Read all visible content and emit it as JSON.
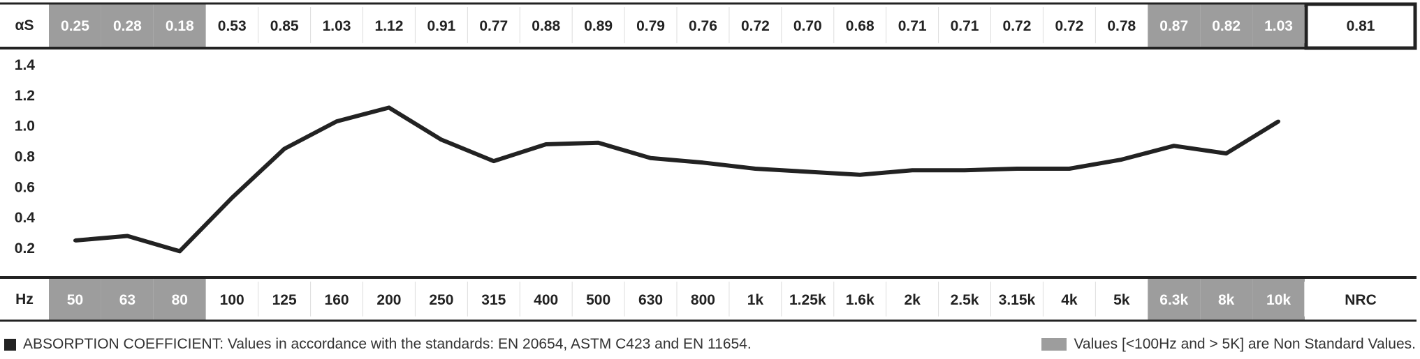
{
  "chart_data": {
    "type": "line",
    "row_label_top": "αS",
    "row_label_bottom": "Hz",
    "categories": [
      "50",
      "63",
      "80",
      "100",
      "125",
      "160",
      "200",
      "250",
      "315",
      "400",
      "500",
      "630",
      "800",
      "1k",
      "1.25k",
      "1.6k",
      "2k",
      "2.5k",
      "3.15k",
      "4k",
      "5k",
      "6.3k",
      "8k",
      "10k"
    ],
    "values": [
      0.25,
      0.28,
      0.18,
      0.53,
      0.85,
      1.03,
      1.12,
      0.91,
      0.77,
      0.88,
      0.89,
      0.79,
      0.76,
      0.72,
      0.7,
      0.68,
      0.71,
      0.71,
      0.72,
      0.72,
      0.78,
      0.87,
      0.82,
      1.03
    ],
    "value_labels": [
      "0.25",
      "0.28",
      "0.18",
      "0.53",
      "0.85",
      "1.03",
      "1.12",
      "0.91",
      "0.77",
      "0.88",
      "0.89",
      "0.79",
      "0.76",
      "0.72",
      "0.70",
      "0.68",
      "0.71",
      "0.71",
      "0.72",
      "0.72",
      "0.78",
      "0.87",
      "0.82",
      "1.03"
    ],
    "non_standard": [
      true,
      true,
      true,
      false,
      false,
      false,
      false,
      false,
      false,
      false,
      false,
      false,
      false,
      false,
      false,
      false,
      false,
      false,
      false,
      false,
      false,
      true,
      true,
      true
    ],
    "yticks": [
      "0.2",
      "0.4",
      "0.6",
      "0.8",
      "1.0",
      "1.2",
      "1.4"
    ],
    "ylim": [
      0.1,
      1.45
    ],
    "nrc_label": "NRC",
    "nrc_value": "0.81",
    "grid": false,
    "colors": {
      "line": "#222222",
      "shade": "#9d9d9d",
      "border": "#222222"
    }
  },
  "footer": {
    "left_text": "ABSORPTION COEFFICIENT: Values in accordance with the standards: EN 20654, ASTM C423 and EN 11654.",
    "right_text": "Values [<100Hz and > 5K] are Non Standard Values."
  }
}
